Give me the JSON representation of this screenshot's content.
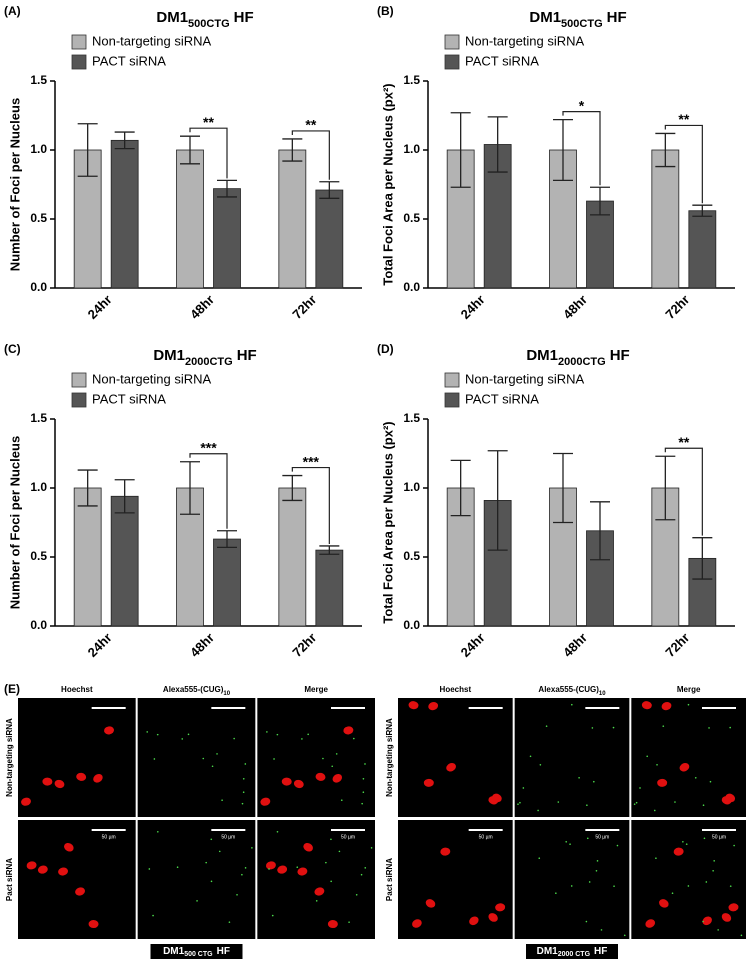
{
  "chart_data": [
    {
      "type": "bar",
      "panel": "(A)",
      "title": {
        "main": "DM1",
        "sub": "500CTG",
        "tail": "HF"
      },
      "ylabel": "Number of Foci per Nucleus",
      "categories": [
        "24hr",
        "48hr",
        "72hr"
      ],
      "series": [
        {
          "name": "Non-targeting siRNA",
          "color": "#b3b3b3",
          "values": [
            1.0,
            1.0,
            1.0
          ],
          "errors": [
            0.19,
            0.1,
            0.08
          ]
        },
        {
          "name": "PACT siRNA",
          "color": "#555555",
          "values": [
            1.07,
            0.72,
            0.71
          ],
          "errors": [
            0.06,
            0.06,
            0.06
          ]
        }
      ],
      "significance": [
        null,
        "**",
        "**"
      ],
      "ylim": [
        0,
        1.5
      ],
      "yticks": [
        {
          "value": 0,
          "label": "0.0"
        },
        0.5,
        {
          "value": 1,
          "label": "1.0"
        },
        1.5
      ]
    },
    {
      "type": "bar",
      "panel": "(B)",
      "title": {
        "main": "DM1",
        "sub": "500CTG",
        "tail": "HF"
      },
      "ylabel": "Total Foci Area per Nucleus (px²)",
      "categories": [
        "24hr",
        "48hr",
        "72hr"
      ],
      "series": [
        {
          "name": "Non-targeting siRNA",
          "color": "#b3b3b3",
          "values": [
            1.0,
            1.0,
            1.0
          ],
          "errors": [
            0.27,
            0.22,
            0.12
          ]
        },
        {
          "name": "PACT siRNA",
          "color": "#555555",
          "values": [
            1.04,
            0.63,
            0.56
          ],
          "errors": [
            0.2,
            0.1,
            0.04
          ]
        }
      ],
      "significance": [
        null,
        "*",
        "**"
      ],
      "ylim": [
        0,
        1.5
      ],
      "yticks": [
        {
          "value": 0,
          "label": "0.0"
        },
        0.5,
        {
          "value": 1,
          "label": "1.0"
        },
        1.5
      ]
    },
    {
      "type": "bar",
      "panel": "(C)",
      "title": {
        "main": "DM1",
        "sub": "2000CTG",
        "tail": "HF"
      },
      "ylabel": "Number of Foci per Nucleus",
      "categories": [
        "24hr",
        "48hr",
        "72hr"
      ],
      "series": [
        {
          "name": "Non-targeting siRNA",
          "color": "#b3b3b3",
          "values": [
            1.0,
            1.0,
            1.0
          ],
          "errors": [
            0.13,
            0.19,
            0.09
          ]
        },
        {
          "name": "PACT siRNA",
          "color": "#555555",
          "values": [
            0.94,
            0.63,
            0.55
          ],
          "errors": [
            0.12,
            0.06,
            0.03
          ]
        }
      ],
      "significance": [
        null,
        "***",
        "***"
      ],
      "ylim": [
        0,
        1.5
      ],
      "yticks": [
        {
          "value": 0,
          "label": "0.0"
        },
        0.5,
        {
          "value": 1,
          "label": "1.0"
        },
        1.5
      ]
    },
    {
      "type": "bar",
      "panel": "(D)",
      "title": {
        "main": "DM1",
        "sub": "2000CTG",
        "tail": "HF"
      },
      "ylabel": "Total Foci Area per Nucleus (px²)",
      "categories": [
        "24hr",
        "48hr",
        "72hr"
      ],
      "series": [
        {
          "name": "Non-targeting siRNA",
          "color": "#b3b3b3",
          "values": [
            1.0,
            1.0,
            1.0
          ],
          "errors": [
            0.2,
            0.25,
            0.23
          ]
        },
        {
          "name": "PACT siRNA",
          "color": "#555555",
          "values": [
            0.91,
            0.69,
            0.49
          ],
          "errors": [
            0.36,
            0.21,
            0.15
          ]
        }
      ],
      "significance": [
        null,
        null,
        "**"
      ],
      "ylim": [
        0,
        1.5
      ],
      "yticks": [
        {
          "value": 0,
          "label": "0.0"
        },
        0.5,
        {
          "value": 1,
          "label": "1.0"
        },
        1.5
      ]
    }
  ],
  "figure_e": {
    "label": "(E)",
    "groups": [
      {
        "columns": [
          {
            "text": "Hoechst"
          },
          {
            "text": "Alexa555-(CUG)",
            "sub": "10"
          },
          {
            "text": "Merge"
          }
        ],
        "rows": [
          "Non-targeting siRNA",
          "Pact siRNA"
        ],
        "scale_label": "50 µm",
        "caption": {
          "main": "DM1",
          "sub": "500 CTG",
          "tail": "HF"
        }
      },
      {
        "columns": [
          {
            "text": "Hoechst"
          },
          {
            "text": "Alexa555-(CUG)",
            "sub": "10"
          },
          {
            "text": "Merge"
          }
        ],
        "rows": [
          "Non-targeting siRNA",
          "Pact siRNA"
        ],
        "scale_label": "50 µm",
        "caption": {
          "main": "DM1",
          "sub": "2000 CTG",
          "tail": "HF"
        }
      }
    ]
  }
}
